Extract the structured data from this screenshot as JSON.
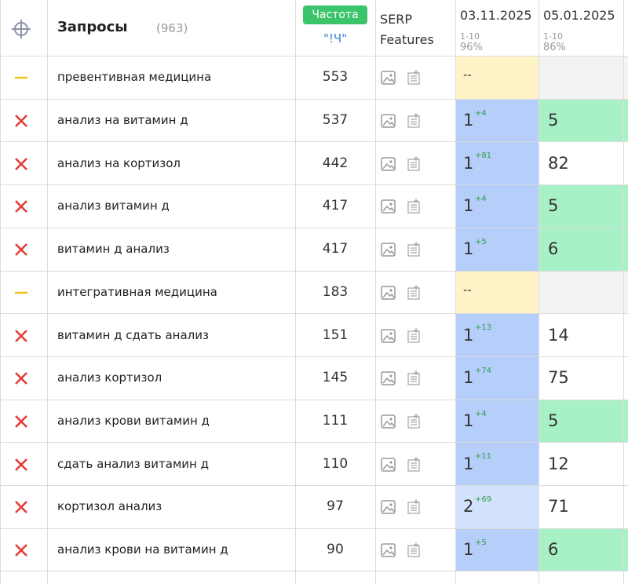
{
  "header": {
    "title": "Запросы",
    "count": "(963)",
    "freq_badge": "Частота",
    "freq_sub": "\"!Ч\"",
    "serp": "SERP Features",
    "dates": [
      {
        "date": "03.11.2025",
        "range": "1-10",
        "share": "96%"
      },
      {
        "date": "05.01.2025",
        "range": "1-10",
        "share": "86%"
      }
    ]
  },
  "colors": {
    "pos1_top": "#b5cefa",
    "pos1_second": "#d2e2fc",
    "pos1_none": "#fdf3c6",
    "pos2_top": "#a8f0c6",
    "pos2_other": "#ffffff",
    "pos2_none": "#f3f3f3"
  },
  "rows": [
    {
      "query": "превентивная медицина",
      "freq": "553",
      "pos1": "--",
      "delta": null,
      "pos2": null
    },
    {
      "query": "анализ на витамин д",
      "freq": "537",
      "pos1": "1",
      "delta": "+4",
      "pos2": "5"
    },
    {
      "query": "анализ на кортизол",
      "freq": "442",
      "pos1": "1",
      "delta": "+81",
      "pos2": "82"
    },
    {
      "query": "анализ витамин д",
      "freq": "417",
      "pos1": "1",
      "delta": "+4",
      "pos2": "5"
    },
    {
      "query": "витамин д анализ",
      "freq": "417",
      "pos1": "1",
      "delta": "+5",
      "pos2": "6"
    },
    {
      "query": "интегративная медицина",
      "freq": "183",
      "pos1": "--",
      "delta": null,
      "pos2": null
    },
    {
      "query": "витамин д сдать анализ",
      "freq": "151",
      "pos1": "1",
      "delta": "+13",
      "pos2": "14"
    },
    {
      "query": "анализ кортизол",
      "freq": "145",
      "pos1": "1",
      "delta": "+74",
      "pos2": "75"
    },
    {
      "query": "анализ крови витамин д",
      "freq": "111",
      "pos1": "1",
      "delta": "+4",
      "pos2": "5"
    },
    {
      "query": "сдать анализ витамин д",
      "freq": "110",
      "pos1": "1",
      "delta": "+11",
      "pos2": "12"
    },
    {
      "query": "кортизол анализ",
      "freq": "97",
      "pos1": "2",
      "delta": "+69",
      "pos2": "71"
    },
    {
      "query": "анализ крови на витамин д",
      "freq": "90",
      "pos1": "1",
      "delta": "+5",
      "pos2": "6"
    }
  ]
}
